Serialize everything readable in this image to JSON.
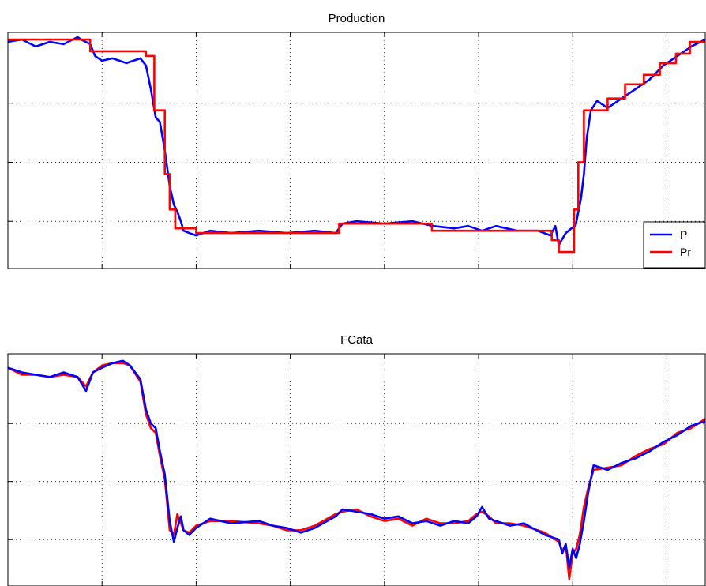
{
  "chart_data": [
    {
      "type": "line",
      "title": "Production",
      "xlabel": "",
      "ylabel": "",
      "grid": true,
      "legend_position": "bottom-right",
      "xlim": [
        0,
        1000
      ],
      "ylim": [
        0,
        100
      ],
      "x_grid": [
        135,
        270,
        405,
        540,
        675,
        810,
        945
      ],
      "y_grid": [
        20,
        45,
        70
      ],
      "colors": {
        "P": "#0000ff",
        "Pr": "#ff0000"
      },
      "series": [
        {
          "name": "P",
          "x": [
            0,
            20,
            40,
            60,
            80,
            100,
            105,
            118,
            125,
            135,
            150,
            170,
            190,
            198,
            205,
            212,
            218,
            225,
            232,
            238,
            243,
            248,
            252,
            260,
            270,
            290,
            320,
            360,
            400,
            440,
            470,
            480,
            500,
            540,
            580,
            610,
            640,
            660,
            680,
            700,
            730,
            760,
            778,
            785,
            790,
            800,
            808,
            814,
            818,
            822,
            826,
            830,
            836,
            845,
            860,
            880,
            900,
            920,
            940,
            960,
            980,
            1000
          ],
          "y": [
            96,
            97,
            94,
            96,
            95,
            98,
            97,
            95,
            90,
            88,
            89,
            87,
            89,
            86,
            76,
            64,
            62,
            50,
            35,
            27,
            24,
            20,
            16,
            15,
            14,
            16,
            15,
            16,
            15,
            16,
            15,
            19,
            20,
            19,
            20,
            18,
            17,
            18,
            16,
            18,
            16,
            16,
            14,
            18,
            10,
            15,
            17,
            18,
            24,
            30,
            40,
            55,
            67,
            71,
            68,
            72,
            76,
            80,
            86,
            90,
            94,
            97
          ]
        },
        {
          "name": "Pr",
          "x": [
            0,
            118,
            118,
            198,
            198,
            210,
            210,
            225,
            225,
            232,
            232,
            240,
            240,
            270,
            270,
            475,
            475,
            608,
            608,
            780,
            780,
            790,
            790,
            812,
            812,
            818,
            818,
            826,
            826,
            860,
            860,
            885,
            885,
            912,
            912,
            935,
            935,
            958,
            958,
            978,
            978,
            1000
          ],
          "y": [
            97,
            97,
            92,
            92,
            90,
            90,
            67,
            67,
            40,
            40,
            25,
            25,
            17,
            17,
            15,
            15,
            19,
            19,
            16,
            16,
            12,
            12,
            7,
            7,
            25,
            25,
            45,
            45,
            67,
            67,
            72,
            72,
            78,
            78,
            82,
            82,
            87,
            87,
            91,
            91,
            96,
            96
          ]
        }
      ]
    },
    {
      "type": "line",
      "title": "FCata",
      "xlabel": "",
      "ylabel": "",
      "grid": true,
      "xlim": [
        0,
        1000
      ],
      "ylim": [
        0,
        100
      ],
      "x_grid": [
        135,
        270,
        405,
        540,
        675,
        810,
        945
      ],
      "y_grid": [
        20,
        45,
        70
      ],
      "colors": {
        "P": "#0000ff",
        "Pr": "#ff0000"
      },
      "series": [
        {
          "name": "",
          "x": [
            0,
            20,
            40,
            60,
            80,
            100,
            112,
            122,
            135,
            150,
            165,
            175,
            190,
            198,
            205,
            212,
            218,
            225,
            232,
            238,
            243,
            248,
            252,
            260,
            270,
            290,
            320,
            360,
            380,
            400,
            420,
            440,
            470,
            480,
            500,
            520,
            540,
            560,
            580,
            600,
            620,
            640,
            660,
            672,
            680,
            690,
            700,
            720,
            740,
            770,
            790,
            795,
            800,
            805,
            810,
            815,
            820,
            826,
            832,
            840,
            860,
            880,
            900,
            920,
            940,
            960,
            980,
            1000
          ],
          "y": [
            94,
            92,
            91,
            90,
            92,
            90,
            84,
            92,
            94,
            96,
            97,
            95,
            89,
            76,
            70,
            68,
            58,
            48,
            28,
            19,
            25,
            30,
            24,
            22,
            25,
            29,
            27,
            28,
            26,
            25,
            23,
            25,
            30,
            33,
            32,
            31,
            29,
            30,
            27,
            28,
            26,
            28,
            27,
            30,
            34,
            29,
            28,
            26,
            27,
            22,
            20,
            14,
            18,
            8,
            16,
            12,
            18,
            28,
            40,
            52,
            50,
            53,
            55,
            58,
            62,
            65,
            69,
            71
          ]
        },
        {
          "name": "",
          "x": [
            0,
            20,
            40,
            60,
            80,
            100,
            112,
            122,
            135,
            150,
            165,
            175,
            190,
            198,
            205,
            212,
            218,
            225,
            232,
            238,
            243,
            248,
            252,
            260,
            270,
            290,
            320,
            360,
            380,
            400,
            420,
            440,
            470,
            480,
            500,
            520,
            540,
            560,
            580,
            600,
            620,
            640,
            660,
            672,
            680,
            690,
            700,
            720,
            740,
            770,
            790,
            795,
            800,
            805,
            810,
            815,
            820,
            826,
            832,
            840,
            860,
            880,
            900,
            920,
            940,
            960,
            980,
            1000
          ],
          "y": [
            94,
            91,
            91,
            90,
            91,
            90,
            86,
            92,
            95,
            96,
            96,
            95,
            88,
            74,
            68,
            66,
            56,
            46,
            24,
            22,
            31,
            27,
            24,
            23,
            26,
            28,
            28,
            27,
            26,
            24,
            24,
            26,
            31,
            32,
            33,
            30,
            28,
            29,
            26,
            29,
            27,
            27,
            28,
            31,
            32,
            30,
            27,
            27,
            26,
            23,
            19,
            15,
            18,
            3,
            14,
            16,
            22,
            34,
            42,
            50,
            51,
            52,
            56,
            59,
            61,
            66,
            68,
            72
          ]
        }
      ]
    }
  ]
}
